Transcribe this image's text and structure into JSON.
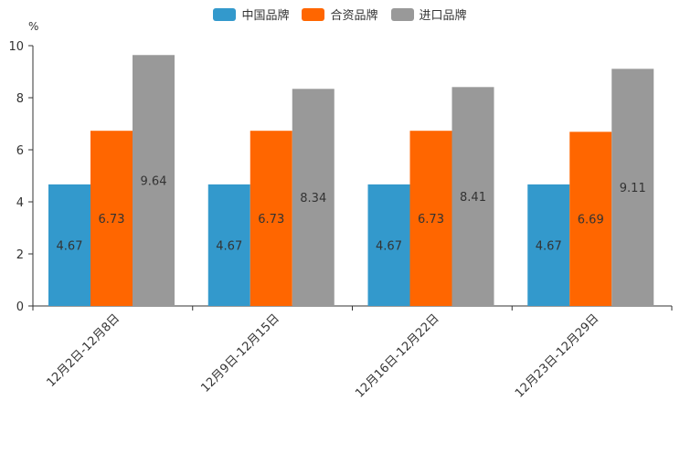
{
  "chart_data": {
    "type": "bar",
    "title": "",
    "ylabel": "%",
    "xlabel": "",
    "ylim": [
      0,
      10
    ],
    "yticks": [
      0,
      2,
      4,
      6,
      8,
      10
    ],
    "legend_position": "top-center",
    "categories": [
      "12月2日-12月8日",
      "12月9日-12月15日",
      "12月16日-12月22日",
      "12月23日-12月29日"
    ],
    "series": [
      {
        "name": "中国品牌",
        "color": "#3399cc",
        "values": [
          4.67,
          4.67,
          4.67,
          4.67
        ]
      },
      {
        "name": "合资品牌",
        "color": "#ff6600",
        "values": [
          6.73,
          6.73,
          6.73,
          6.69
        ]
      },
      {
        "name": "进口品牌",
        "color": "#999999",
        "values": [
          9.64,
          8.34,
          8.41,
          9.11
        ]
      }
    ]
  }
}
